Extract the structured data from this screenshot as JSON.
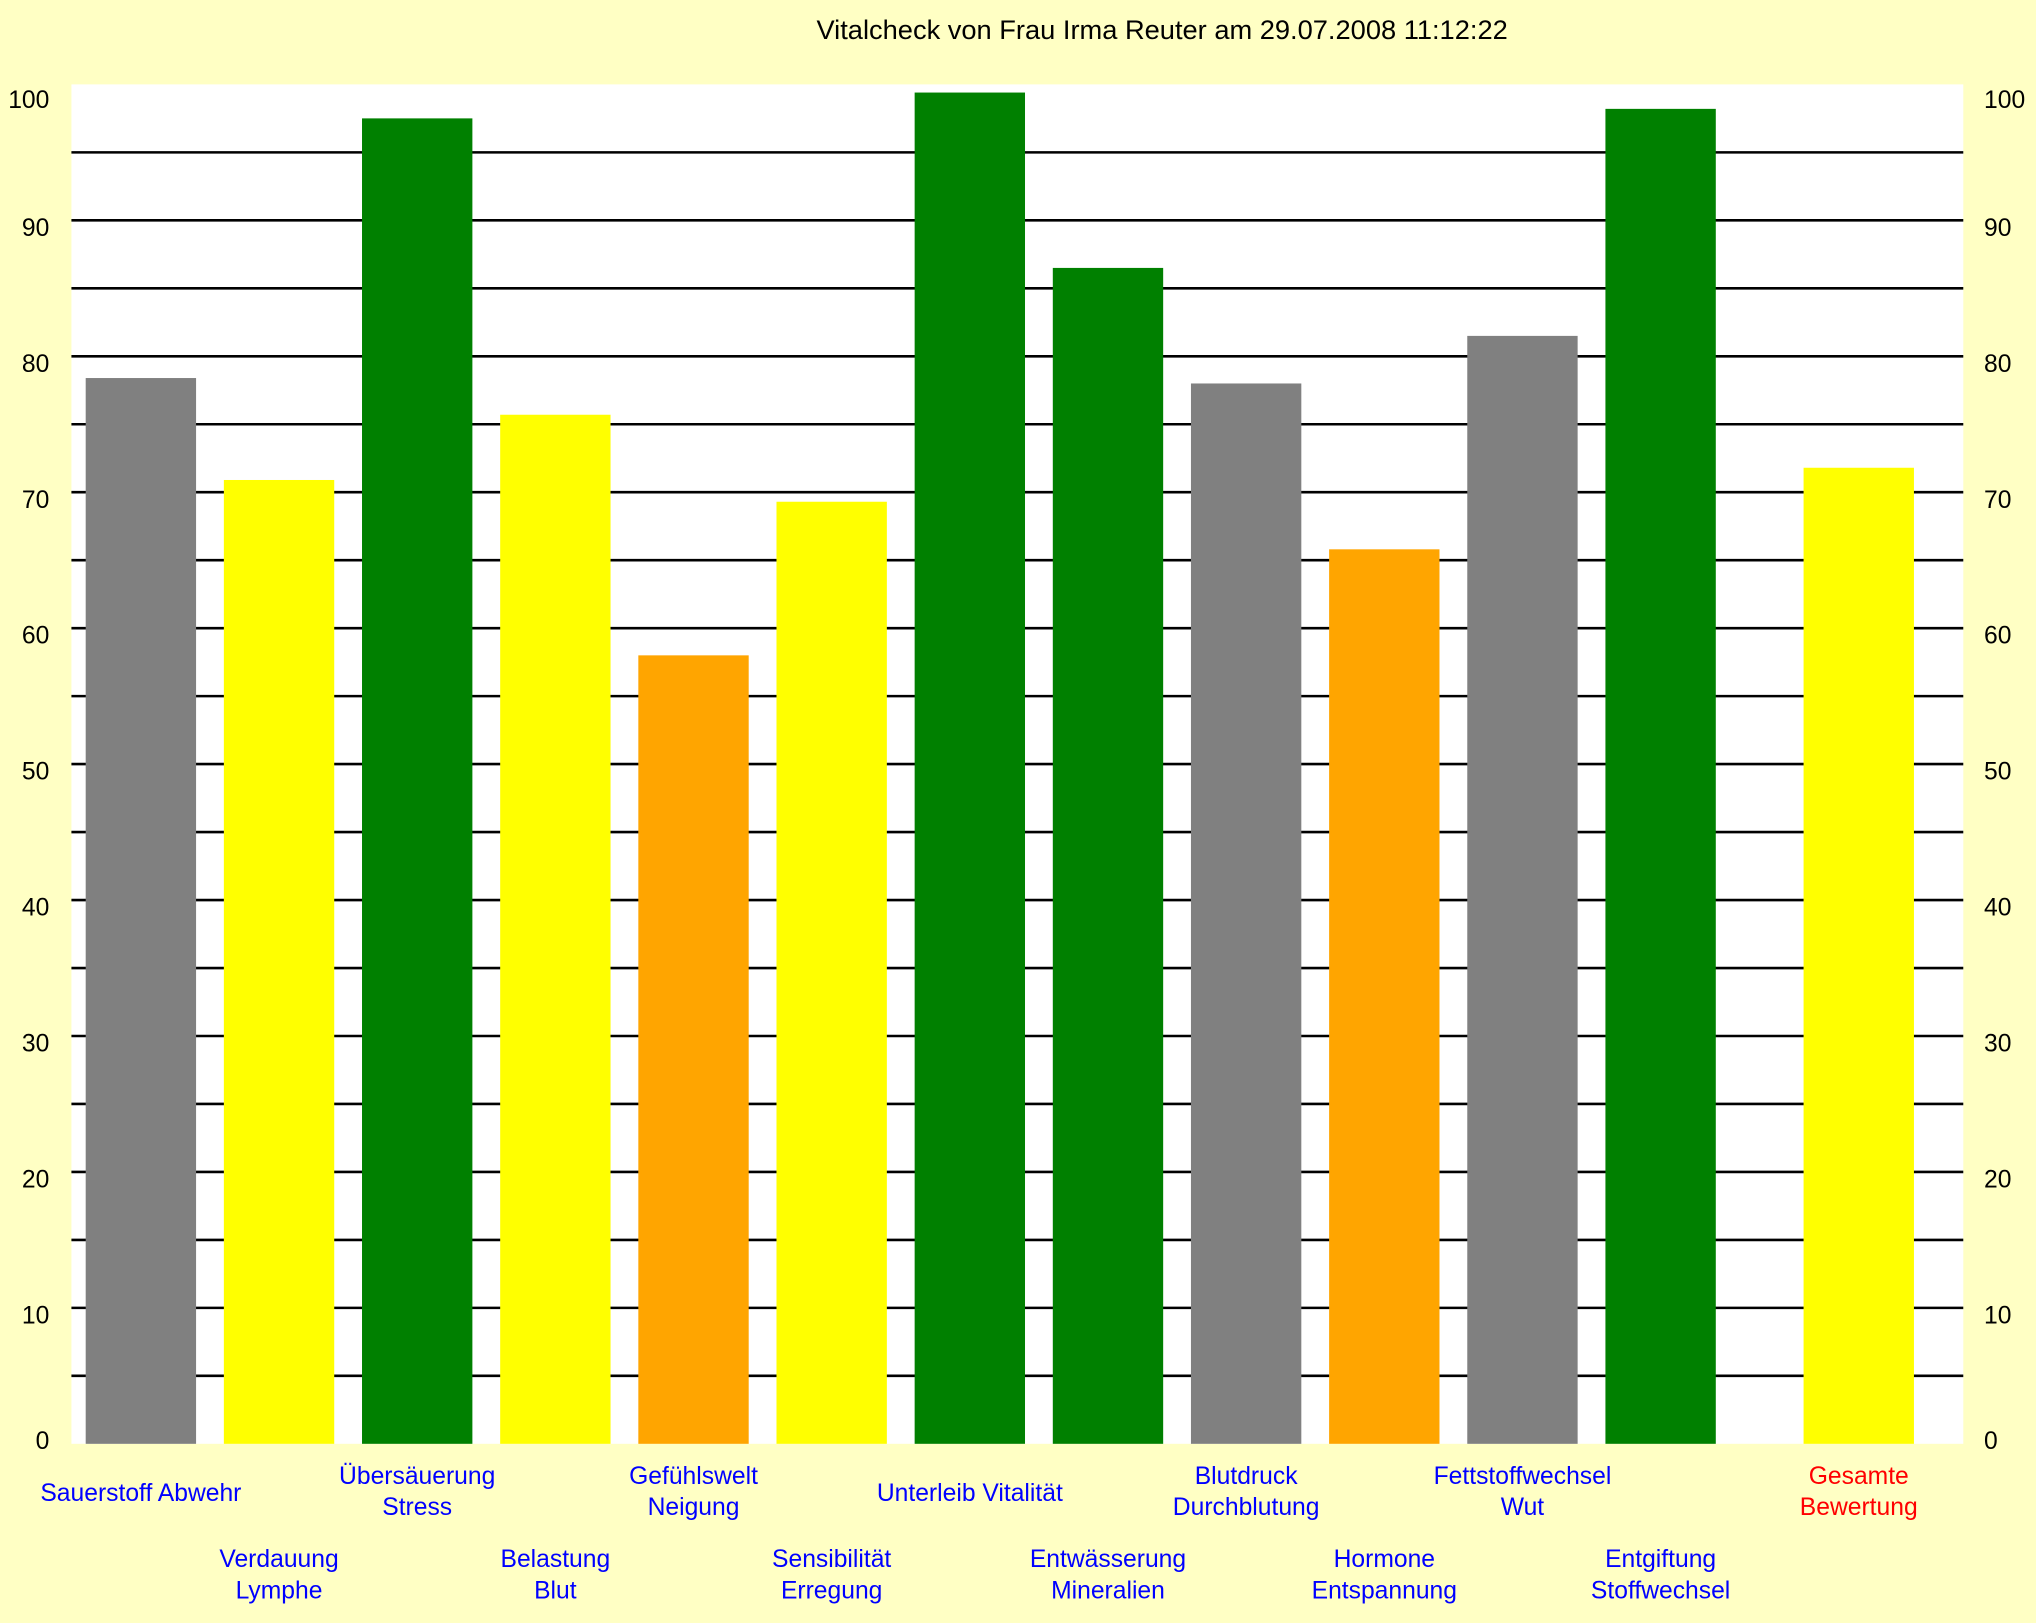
{
  "chart_data": {
    "type": "bar",
    "title": "Vitalcheck von Frau Irma Reuter am 29.07.2008 11:12:22",
    "xlabel": "",
    "ylabel": "",
    "ylim": [
      0,
      100
    ],
    "yticks": [
      0,
      10,
      20,
      30,
      40,
      50,
      60,
      70,
      80,
      90,
      100
    ],
    "grid": true,
    "grid_step": 5,
    "secondary_y_axis": true,
    "categories": [
      [
        "Sauerstoff Abwehr"
      ],
      [
        "Verdauung",
        "Lymphe"
      ],
      [
        "Übersäuerung",
        "Stress"
      ],
      [
        "Belastung",
        "Blut"
      ],
      [
        "Gefühlswelt",
        "Neigung"
      ],
      [
        "Sensibilität",
        "Erregung"
      ],
      [
        "Unterleib Vitalität"
      ],
      [
        "Entwässerung",
        "Mineralien"
      ],
      [
        "Blutdruck",
        "Durchblutung"
      ],
      [
        "Hormone",
        "Entspannung"
      ],
      [
        "Fettstoffwechsel",
        "Wut"
      ],
      [
        "Entgiftung",
        "Stoffwechsel"
      ],
      [
        "Gesamte",
        "Bewertung"
      ]
    ],
    "values": [
      78.4,
      70.9,
      97.5,
      75.7,
      58.0,
      69.3,
      99.4,
      86.5,
      78.0,
      65.8,
      81.5,
      98.2,
      71.8
    ],
    "bar_colors": [
      "#808080",
      "#ffff00",
      "#008000",
      "#ffff00",
      "#ffa500",
      "#ffff00",
      "#008000",
      "#008000",
      "#808080",
      "#ffa500",
      "#808080",
      "#008000",
      "#ffff00"
    ],
    "label_colors": [
      "#0000ff",
      "#0000ff",
      "#0000ff",
      "#0000ff",
      "#0000ff",
      "#0000ff",
      "#0000ff",
      "#0000ff",
      "#0000ff",
      "#0000ff",
      "#0000ff",
      "#0000ff",
      "#ff0000"
    ]
  },
  "colors": {
    "background": "#ffffc4",
    "plot_background": "#ffffff",
    "gridline": "#000000"
  }
}
